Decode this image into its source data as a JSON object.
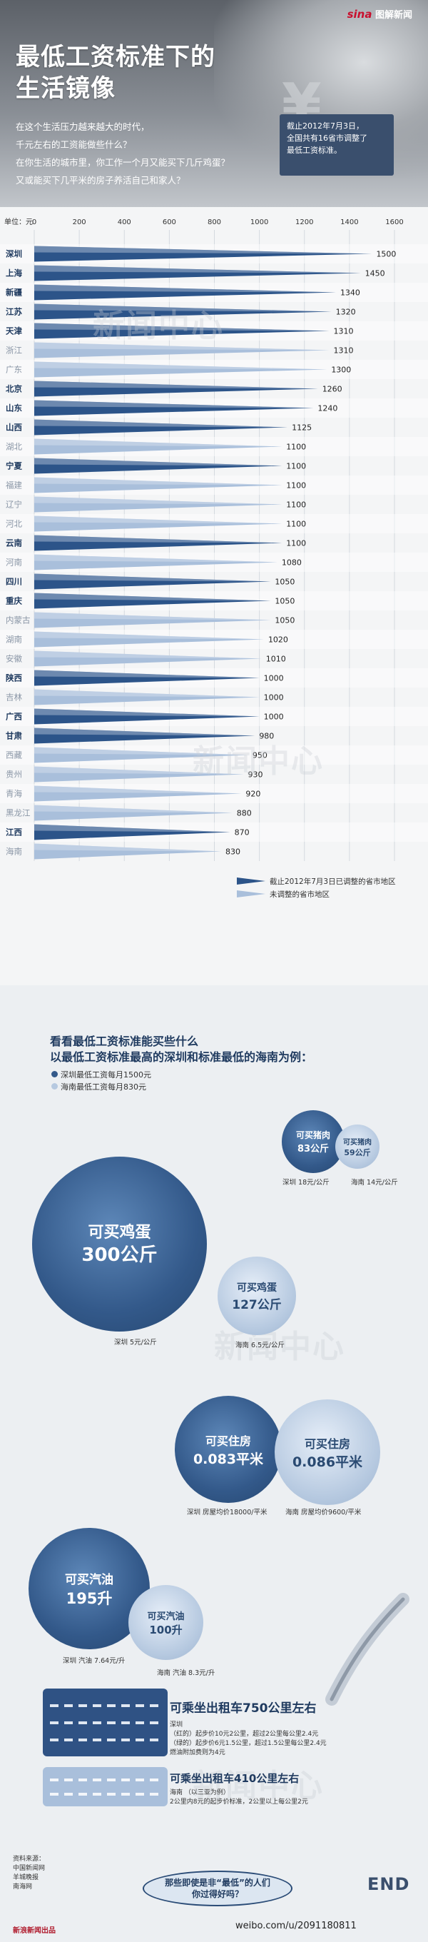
{
  "header": {
    "logo_brand": "sina",
    "logo_text": "图解新闻",
    "title_line1": "最低工资标准下的",
    "title_line2": "生活镜像",
    "yen_symbol": "¥",
    "intro": [
      "在这个生活压力越来越大的时代，",
      "千元左右的工资能做些什么？",
      "在你生活的城市里，你工作一个月又能买下几斤鸡蛋？",
      "又或能买下几平米的房子养活自己和家人？"
    ],
    "note_lines": [
      "截止2012年7月3日，",
      "全国共有16省市调整了",
      "最低工资标准。"
    ]
  },
  "chart_data": {
    "type": "bar",
    "orientation": "horizontal",
    "unit_label": "单位：元",
    "xlim": [
      0,
      1600
    ],
    "xticks": [
      0,
      200,
      400,
      600,
      800,
      1000,
      1200,
      1400,
      1600
    ],
    "categories": [
      "深圳",
      "上海",
      "新疆",
      "江苏",
      "天津",
      "浙江",
      "广东",
      "北京",
      "山东",
      "山西",
      "湖北",
      "宁夏",
      "福建",
      "辽宁",
      "河北",
      "云南",
      "河南",
      "四川",
      "重庆",
      "内蒙古",
      "湖南",
      "安徽",
      "陕西",
      "吉林",
      "广西",
      "甘肃",
      "西藏",
      "贵州",
      "青海",
      "黑龙江",
      "江西",
      "海南"
    ],
    "values": [
      1500,
      1450,
      1340,
      1320,
      1310,
      1310,
      1300,
      1260,
      1240,
      1125,
      1100,
      1100,
      1100,
      1100,
      1100,
      1100,
      1080,
      1050,
      1050,
      1050,
      1020,
      1010,
      1000,
      1000,
      1000,
      980,
      950,
      930,
      920,
      880,
      870,
      830
    ],
    "adjusted": [
      true,
      true,
      true,
      true,
      true,
      false,
      false,
      true,
      true,
      true,
      false,
      true,
      false,
      false,
      false,
      true,
      false,
      true,
      true,
      false,
      false,
      false,
      true,
      false,
      true,
      true,
      false,
      false,
      false,
      false,
      true,
      false
    ],
    "colors": {
      "adjusted": "#2c5489",
      "not_adjusted": "#a9bfdb",
      "bar_highlight": "#e8eef6"
    },
    "legend": [
      {
        "label": "截止2012年7月3日已调整的省市地区",
        "key": "adjusted"
      },
      {
        "label": "未调整的省市地区",
        "key": "not_adjusted"
      }
    ],
    "legend_position": "bottom-right",
    "grid": true
  },
  "watermark": "新闻中心",
  "compare": {
    "title_line1": "看看最低工资标准能买些什么",
    "title_line2": "以最低工资标准最高的深圳和标准最低的海南为例：",
    "legend": [
      "深圳最低工资每月1500元",
      "海南最低工资每月830元"
    ],
    "pork": {
      "sz_label": "可买猪肉",
      "sz_value": "83公斤",
      "hn_label": "可买猪肉",
      "hn_value": "59公斤",
      "sz_caption": "深圳 18元/公斤",
      "hn_caption": "海南 14元/公斤"
    },
    "eggs": {
      "sz_label": "可买鸡蛋",
      "sz_value": "300公斤",
      "hn_label": "可买鸡蛋",
      "hn_value": "127公斤",
      "sz_caption": "深圳 5元/公斤",
      "hn_caption": "海南 6.5元/公斤"
    },
    "house": {
      "sz_label": "可买住房",
      "sz_value": "0.083平米",
      "hn_label": "可买住房",
      "hn_value": "0.086平米",
      "sz_caption": "深圳 房屋均价18000/平米",
      "hn_caption": "海南 房屋均价9600/平米"
    },
    "gas": {
      "sz_label": "可买汽油",
      "sz_value": "195升",
      "hn_label": "可买汽油",
      "hn_value": "100升",
      "sz_caption": "深圳 汽油 7.64元/升",
      "hn_caption": "海南 汽油 8.3元/升"
    },
    "taxi_sz": {
      "title": "可乘坐出租车750公里左右",
      "lines": [
        "深圳",
        "（红的）起步价10元2公里，超过2公里每公里2.4元",
        "（绿的）起步价6元1.5公里，超过1.5公里每公里2.4元",
        "燃油附加费则为4元"
      ]
    },
    "taxi_hn": {
      "title": "可乘坐出租车410公里左右",
      "lines": [
        "海南 （以三亚为例）",
        "2公里内8元的起步价标准，2公里以上每公里2元"
      ]
    }
  },
  "footer": {
    "source_lines": [
      "资料来源：",
      "中国新闻网",
      "羊城晚报",
      "南海网"
    ],
    "brand": "新浪新闻出品",
    "bubble_line1": "那些即使是非“最低”的人们",
    "bubble_line2": "你过得好吗？",
    "end": "END",
    "weibo": "weibo.com/u/2091180811"
  }
}
